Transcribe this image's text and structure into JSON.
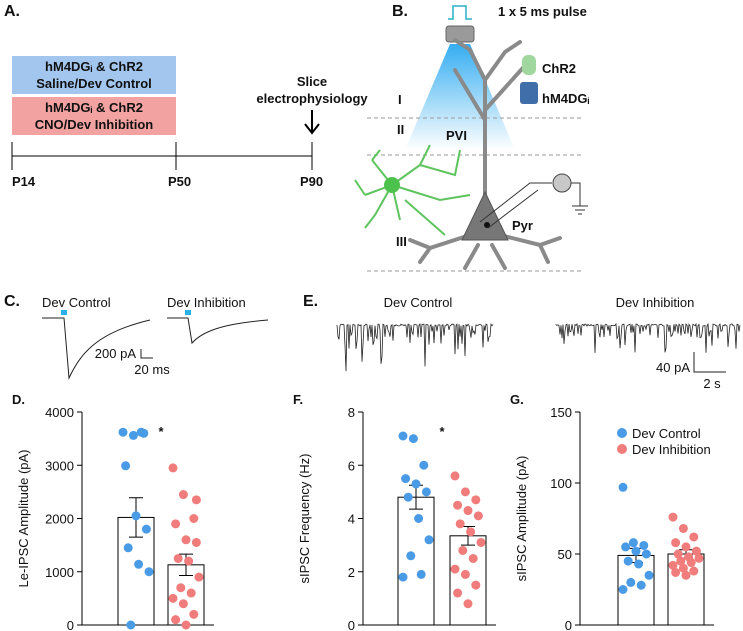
{
  "panels": {
    "A": {
      "label": "A.",
      "group_title": "hM4DGᵢ & ChR2",
      "control": "Saline/Dev Control",
      "inhibition": "CNO/Dev Inhibition",
      "slice_1": "Slice",
      "slice_2": "electrophysiology",
      "timepoints": [
        "P14",
        "P50",
        "P90"
      ]
    },
    "B": {
      "label": "B.",
      "pulse": "1 x 5 ms pulse",
      "chr2": "ChR2",
      "hm4d": "hM4DGᵢ",
      "layers": [
        "I",
        "II",
        "III"
      ],
      "pvi": "PVI",
      "pyr": "Pyr"
    },
    "C": {
      "label": "C.",
      "control": "Dev Control",
      "inhibition": "Dev Inhibition",
      "scale_y": "200 pA",
      "scale_x": "20 ms"
    },
    "E": {
      "label": "E.",
      "control": "Dev Control",
      "inhibition": "Dev Inhibition",
      "scale_y": "40 pA",
      "scale_x": "2 s"
    }
  },
  "chart_data": [
    {
      "type": "bar",
      "panel_label": "D.",
      "y_label": "Le-IPSC Amplitude (pA)",
      "annotation": "*",
      "ylim": [
        0,
        4000
      ],
      "yticks": [
        0,
        1000,
        2000,
        3000,
        4000
      ],
      "legend": false,
      "series": [
        {
          "color": "#4a9be6",
          "value": 2020,
          "error": 370,
          "points": [
            3620,
            3560,
            3600,
            2990,
            2050,
            1800,
            1450,
            1140,
            1000,
            0,
            3620
          ]
        },
        {
          "color": "#f07c7c",
          "value": 1130,
          "error": 200,
          "points": [
            2950,
            2450,
            2000,
            1900,
            1600,
            1550,
            1250,
            1200,
            900,
            700,
            600,
            500,
            400,
            200,
            100,
            0,
            2350
          ]
        }
      ]
    },
    {
      "type": "bar",
      "panel_label": "F.",
      "y_label": "sIPSC Frequency (Hz)",
      "annotation": "*",
      "ylim": [
        0,
        8
      ],
      "yticks": [
        0,
        2,
        4,
        6,
        8
      ],
      "legend": false,
      "series": [
        {
          "color": "#4a9be6",
          "value": 4.8,
          "error": 0.45,
          "points": [
            7.1,
            7.0,
            6.0,
            5.5,
            5.3,
            5.0,
            4.8,
            4.0,
            3.2,
            2.6,
            1.9,
            1.8
          ]
        },
        {
          "color": "#f07c7c",
          "value": 3.35,
          "error": 0.35,
          "points": [
            5.6,
            5.0,
            4.7,
            4.5,
            4.3,
            4.1,
            3.8,
            3.5,
            3.1,
            2.8,
            2.5,
            2.1,
            1.9,
            1.5,
            1.2,
            0.8
          ]
        }
      ]
    },
    {
      "type": "bar",
      "panel_label": "G.",
      "y_label": "sIPSC Amplitude (pA)",
      "ylim": [
        0,
        150
      ],
      "yticks": [
        0,
        50,
        100,
        150
      ],
      "legend": true,
      "series": [
        {
          "name": "Dev Control",
          "color": "#4a9be6",
          "value": 49,
          "error": 5,
          "points": [
            97,
            58,
            56,
            55,
            52,
            50,
            45,
            43,
            35,
            30,
            28,
            25
          ]
        },
        {
          "name": "Dev Inhibition",
          "color": "#f07c7c",
          "value": 50,
          "error": 3,
          "points": [
            76,
            68,
            62,
            58,
            55,
            52,
            50,
            48,
            47,
            45,
            44,
            42,
            40,
            38,
            37,
            35
          ]
        }
      ]
    }
  ]
}
